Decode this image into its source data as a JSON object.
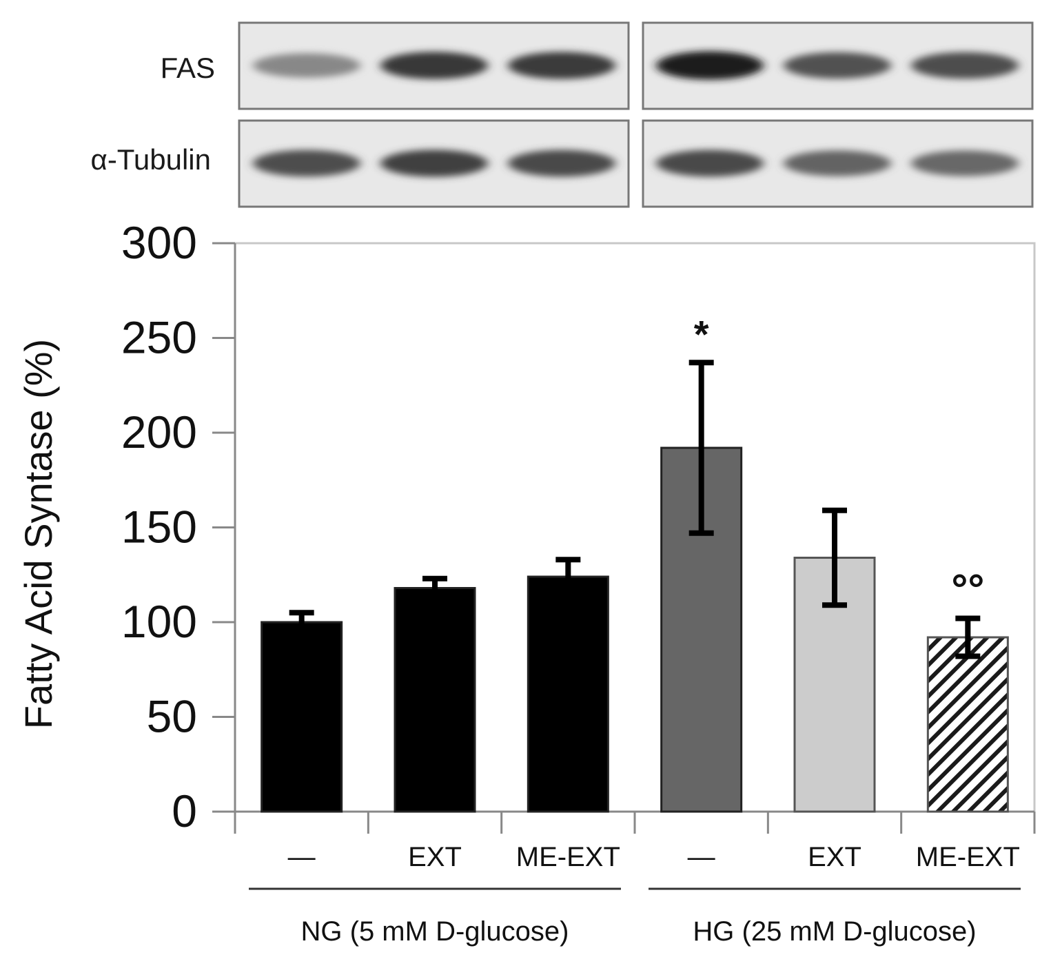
{
  "blot": {
    "rows": [
      {
        "label": "FAS",
        "intensities": [
          0.45,
          0.82,
          0.8,
          0.95,
          0.7,
          0.72
        ]
      },
      {
        "label": "α-Tubulin",
        "intensities": [
          0.72,
          0.78,
          0.74,
          0.74,
          0.62,
          0.6
        ]
      }
    ]
  },
  "chart_data": {
    "type": "bar",
    "title": "",
    "xlabel": "",
    "ylabel": "Fatty Acid Syntase (%)",
    "ylim": [
      0,
      300
    ],
    "yticks": [
      "0",
      "50",
      "100",
      "150",
      "200",
      "250",
      "300"
    ],
    "categories": [
      "—",
      "EXT",
      "ME-EXT",
      "—",
      "EXT",
      "ME-EXT"
    ],
    "groups": [
      {
        "label": "NG (5 mM D-glucose)",
        "categories": [
          0,
          1,
          2
        ]
      },
      {
        "label": "HG (25 mM D-glucose)",
        "categories": [
          3,
          4,
          5
        ]
      }
    ],
    "values": [
      100,
      118,
      124,
      192,
      134,
      92
    ],
    "errors": [
      5,
      5,
      9,
      45,
      25,
      10
    ],
    "bar_colors": [
      "#000000",
      "#000000",
      "#000000",
      "#666666",
      "#cccccc",
      "hatched"
    ],
    "annotations": [
      {
        "category": 3,
        "text": "*"
      },
      {
        "category": 5,
        "text": "°°"
      }
    ],
    "grid": false
  }
}
